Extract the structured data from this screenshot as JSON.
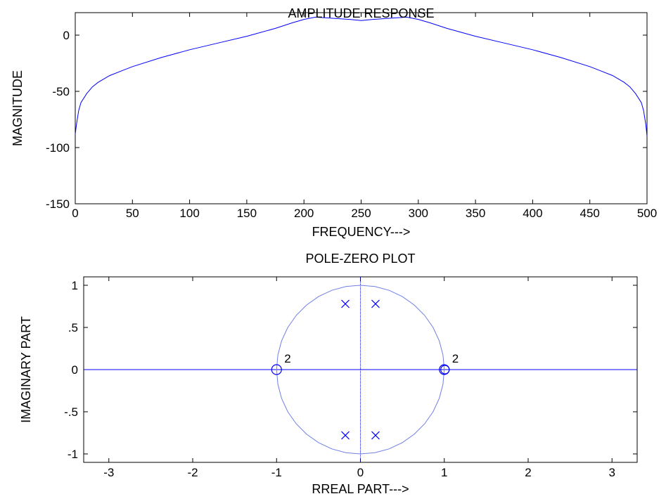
{
  "colors": {
    "figure_background": "#ffffff",
    "axes_background": "#ffffff",
    "axes_line": "#000000",
    "series": "#0000ff",
    "unit_circle": "#6f7fe6"
  },
  "chart_data": [
    {
      "type": "line",
      "title": "AMPLITUDE RESPONSE",
      "xlabel": "FREQUENCY--->",
      "ylabel": "MAGNITUDE",
      "xlim": [
        0,
        500
      ],
      "ylim": [
        -150,
        20
      ],
      "xticks": [
        0,
        50,
        100,
        150,
        200,
        250,
        300,
        350,
        400,
        450,
        500
      ],
      "yticks": [
        0,
        -50,
        -100,
        -150
      ],
      "grid": false,
      "legend": "none",
      "series": [
        {
          "x": [
            0,
            1,
            3,
            5,
            10,
            15,
            20,
            30,
            40,
            50,
            75,
            100,
            125,
            150,
            175,
            190,
            200,
            210,
            225,
            240,
            250,
            260,
            275,
            290,
            300,
            310,
            325,
            350,
            375,
            400,
            425,
            450,
            460,
            470,
            480,
            485,
            490,
            495,
            497,
            499,
            500
          ],
          "y": [
            -88,
            -80,
            -67,
            -60,
            -52,
            -46,
            -42,
            -36,
            -32,
            -28,
            -20,
            -13,
            -7,
            -1,
            6,
            11,
            14,
            16,
            15,
            14,
            13,
            14,
            15,
            16,
            14,
            11,
            6,
            -1,
            -7,
            -13,
            -20,
            -28,
            -32,
            -36,
            -42,
            -46,
            -52,
            -60,
            -67,
            -80,
            -90
          ]
        }
      ]
    },
    {
      "type": "scatter",
      "title": "POLE-ZERO PLOT",
      "xlabel": "RREAL PART--->",
      "ylabel": "IMAGINARY PART",
      "xlim": [
        -3.3,
        3.3
      ],
      "ylim": [
        -1.1,
        1.1
      ],
      "xticks": [
        -3,
        -2,
        -1,
        0,
        1,
        2,
        3
      ],
      "yticks": [
        1,
        0.5,
        0,
        -0.5,
        -1
      ],
      "grid": false,
      "legend": "none",
      "unit_circle": true,
      "zeros": [
        [
          -1,
          0
        ],
        [
          1,
          0
        ]
      ],
      "zero_multiplicity_labels": [
        "2",
        "2"
      ],
      "poles": [
        [
          -0.18,
          0.78
        ],
        [
          0.18,
          0.78
        ],
        [
          -0.18,
          -0.78
        ],
        [
          0.18,
          -0.78
        ]
      ]
    }
  ]
}
